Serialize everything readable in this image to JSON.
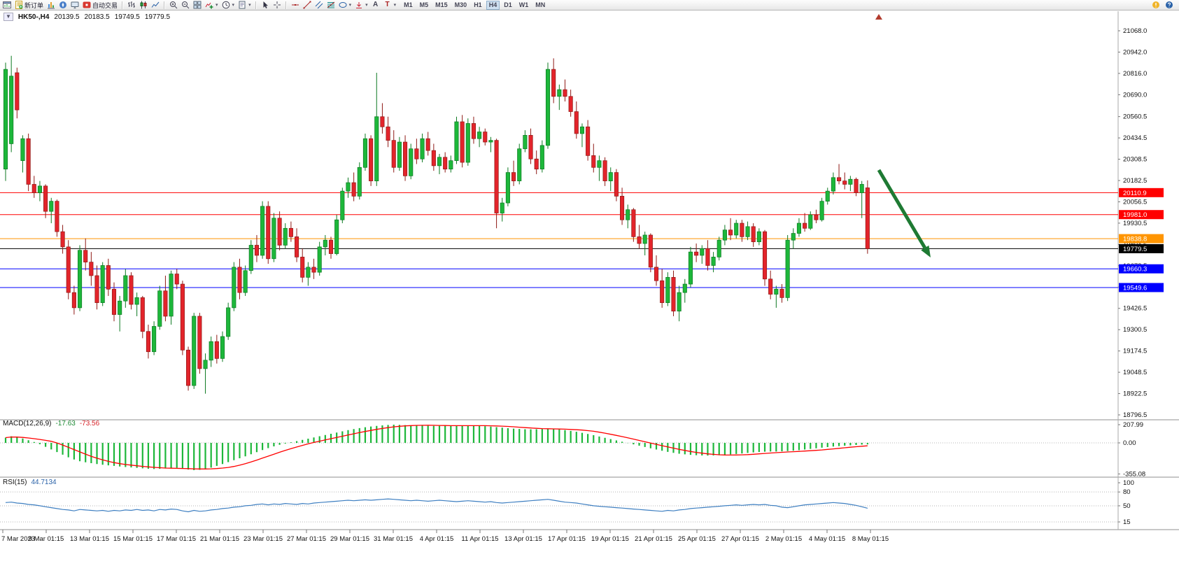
{
  "toolbar": {
    "new_order": "新订单",
    "autotrading": "自动交易",
    "timeframes": [
      "M1",
      "M5",
      "M15",
      "M30",
      "H1",
      "H4",
      "D1",
      "W1",
      "MN"
    ],
    "active_timeframe": "H4"
  },
  "chart_header": {
    "symbol_period": "HK50-,H4",
    "open": "20139.5",
    "high": "20183.5",
    "low": "19749.5",
    "close": "19779.5"
  },
  "indicators": {
    "macd": {
      "label": "MACD(12,26,9)",
      "value_main": "-17.63",
      "value_signal": "-73.56"
    },
    "rsi": {
      "label": "RSI(15)",
      "value": "44.7134"
    }
  },
  "chart_data": {
    "type": "candlestick",
    "symbol": "HK50-",
    "timeframe": "H4",
    "up_color": "#1db73a",
    "up_border": "#0d7a22",
    "down_color": "#e3242b",
    "down_border": "#8f1a16",
    "price_axis": {
      "labels": [
        "21068.0",
        "20942.0",
        "20816.0",
        "20690.0",
        "20560.5",
        "20434.5",
        "20308.5",
        "20182.5",
        "20056.5",
        "19930.5",
        "19804.5",
        "19678.5",
        "19552.5",
        "19426.5",
        "19300.5",
        "19174.5",
        "19048.5",
        "18922.5",
        "18796.5"
      ]
    },
    "hlines": [
      {
        "price": 20110.9,
        "color": "#ff0000",
        "label": "20110.9"
      },
      {
        "price": 19981.0,
        "color": "#ff0000",
        "label": "19981.0"
      },
      {
        "price": 19838.8,
        "color": "#ff9500",
        "label": "19838.8"
      },
      {
        "price": 19779.5,
        "color": "#000000",
        "label": "19779.5"
      },
      {
        "price": 19660.3,
        "color": "#0000ff",
        "label": "19660.3"
      },
      {
        "price": 19549.6,
        "color": "#0000ff",
        "label": "19549.6"
      }
    ],
    "candles": [
      [
        20250,
        20880,
        20180,
        20840
      ],
      [
        20400,
        20920,
        20350,
        20800
      ],
      [
        20820,
        20850,
        20550,
        20600
      ],
      [
        20300,
        20450,
        20230,
        20430
      ],
      [
        20430,
        20460,
        20120,
        20160
      ],
      [
        20160,
        20210,
        20080,
        20110
      ],
      [
        20110,
        20180,
        20060,
        20150
      ],
      [
        20150,
        20160,
        19960,
        20000
      ],
      [
        20000,
        20080,
        19930,
        20060
      ],
      [
        20060,
        20070,
        19850,
        19880
      ],
      [
        19880,
        19920,
        19750,
        19790
      ],
      [
        19790,
        19830,
        19480,
        19520
      ],
      [
        19520,
        19560,
        19390,
        19430
      ],
      [
        19430,
        19800,
        19410,
        19770
      ],
      [
        19770,
        19840,
        19650,
        19700
      ],
      [
        19700,
        19760,
        19560,
        19620
      ],
      [
        19620,
        19680,
        19420,
        19460
      ],
      [
        19460,
        19700,
        19440,
        19680
      ],
      [
        19680,
        19720,
        19500,
        19540
      ],
      [
        19540,
        19580,
        19350,
        19390
      ],
      [
        19390,
        19500,
        19290,
        19470
      ],
      [
        19470,
        19660,
        19430,
        19620
      ],
      [
        19620,
        19640,
        19420,
        19450
      ],
      [
        19450,
        19520,
        19380,
        19490
      ],
      [
        19490,
        19500,
        19250,
        19290
      ],
      [
        19290,
        19330,
        19130,
        19170
      ],
      [
        19170,
        19350,
        19150,
        19320
      ],
      [
        19320,
        19560,
        19300,
        19530
      ],
      [
        19530,
        19620,
        19350,
        19380
      ],
      [
        19380,
        19650,
        19330,
        19630
      ],
      [
        19630,
        19660,
        19540,
        19570
      ],
      [
        19570,
        19590,
        19150,
        19180
      ],
      [
        19180,
        19200,
        18940,
        18970
      ],
      [
        18970,
        19400,
        18950,
        19380
      ],
      [
        19380,
        19400,
        19040,
        19070
      ],
      [
        19070,
        19160,
        18922,
        19120
      ],
      [
        19120,
        19260,
        19080,
        19230
      ],
      [
        19230,
        19270,
        19100,
        19130
      ],
      [
        19130,
        19290,
        19110,
        19260
      ],
      [
        19260,
        19460,
        19240,
        19430
      ],
      [
        19430,
        19700,
        19410,
        19670
      ],
      [
        19670,
        19720,
        19480,
        19520
      ],
      [
        19520,
        19680,
        19500,
        19650
      ],
      [
        19650,
        19830,
        19630,
        19800
      ],
      [
        19800,
        19860,
        19700,
        19740
      ],
      [
        19740,
        20060,
        19720,
        20030
      ],
      [
        20030,
        20060,
        19690,
        19720
      ],
      [
        19720,
        19990,
        19700,
        19960
      ],
      [
        19960,
        20000,
        19770,
        19800
      ],
      [
        19800,
        19930,
        19780,
        19900
      ],
      [
        19900,
        19940,
        19820,
        19850
      ],
      [
        19850,
        19900,
        19700,
        19730
      ],
      [
        19730,
        19780,
        19580,
        19610
      ],
      [
        19610,
        19700,
        19560,
        19670
      ],
      [
        19670,
        19720,
        19600,
        19640
      ],
      [
        19640,
        19820,
        19620,
        19790
      ],
      [
        19790,
        19860,
        19740,
        19830
      ],
      [
        19830,
        19850,
        19720,
        19750
      ],
      [
        19750,
        19980,
        19740,
        19950
      ],
      [
        19950,
        20140,
        19930,
        20120
      ],
      [
        20120,
        20200,
        20080,
        20170
      ],
      [
        20170,
        20230,
        20060,
        20090
      ],
      [
        20090,
        20290,
        20070,
        20260
      ],
      [
        20260,
        20460,
        20240,
        20430
      ],
      [
        20430,
        20450,
        20150,
        20180
      ],
      [
        20180,
        20820,
        20150,
        20560
      ],
      [
        20560,
        20640,
        20460,
        20500
      ],
      [
        20500,
        20560,
        20380,
        20420
      ],
      [
        20420,
        20480,
        20230,
        20260
      ],
      [
        20260,
        20440,
        20240,
        20410
      ],
      [
        20410,
        20450,
        20180,
        20210
      ],
      [
        20210,
        20400,
        20190,
        20370
      ],
      [
        20370,
        20430,
        20280,
        20310
      ],
      [
        20310,
        20460,
        20290,
        20430
      ],
      [
        20430,
        20470,
        20330,
        20360
      ],
      [
        20360,
        20400,
        20240,
        20270
      ],
      [
        20270,
        20340,
        20220,
        20320
      ],
      [
        20320,
        20350,
        20230,
        20250
      ],
      [
        20250,
        20330,
        20230,
        20300
      ],
      [
        20300,
        20560,
        20280,
        20530
      ],
      [
        20530,
        20570,
        20260,
        20290
      ],
      [
        20290,
        20550,
        20270,
        20520
      ],
      [
        20520,
        20560,
        20400,
        20430
      ],
      [
        20430,
        20500,
        20380,
        20470
      ],
      [
        20470,
        20490,
        20390,
        20410
      ],
      [
        20410,
        20440,
        20350,
        20420
      ],
      [
        20420,
        20430,
        19900,
        19990
      ],
      [
        19990,
        20080,
        19940,
        20050
      ],
      [
        20050,
        20260,
        20030,
        20230
      ],
      [
        20230,
        20300,
        20150,
        20180
      ],
      [
        20180,
        20400,
        20160,
        20370
      ],
      [
        20370,
        20480,
        20350,
        20450
      ],
      [
        20450,
        20490,
        20280,
        20310
      ],
      [
        20310,
        20360,
        20220,
        20250
      ],
      [
        20250,
        20420,
        20230,
        20390
      ],
      [
        20390,
        20880,
        20370,
        20840
      ],
      [
        20840,
        20905,
        20640,
        20680
      ],
      [
        20680,
        20750,
        20600,
        20720
      ],
      [
        20720,
        20780,
        20650,
        20680
      ],
      [
        20680,
        20720,
        20560,
        20590
      ],
      [
        20590,
        20650,
        20430,
        20460
      ],
      [
        20460,
        20520,
        20380,
        20500
      ],
      [
        20500,
        20540,
        20300,
        20330
      ],
      [
        20330,
        20400,
        20230,
        20260
      ],
      [
        20260,
        20330,
        20180,
        20300
      ],
      [
        20300,
        20320,
        20150,
        20180
      ],
      [
        20180,
        20260,
        20120,
        20230
      ],
      [
        20230,
        20250,
        20060,
        20090
      ],
      [
        20090,
        20140,
        19920,
        19950
      ],
      [
        19950,
        20040,
        19900,
        20010
      ],
      [
        20010,
        20020,
        19820,
        19850
      ],
      [
        19850,
        19920,
        19780,
        19810
      ],
      [
        19810,
        19880,
        19740,
        19860
      ],
      [
        19860,
        19870,
        19640,
        19670
      ],
      [
        19670,
        19740,
        19560,
        19590
      ],
      [
        19590,
        19660,
        19430,
        19460
      ],
      [
        19460,
        19640,
        19440,
        19610
      ],
      [
        19610,
        19650,
        19380,
        19410
      ],
      [
        19410,
        19560,
        19350,
        19520
      ],
      [
        19520,
        19600,
        19460,
        19570
      ],
      [
        19570,
        19790,
        19550,
        19760
      ],
      [
        19760,
        19810,
        19700,
        19740
      ],
      [
        19740,
        19800,
        19690,
        19780
      ],
      [
        19780,
        19830,
        19650,
        19680
      ],
      [
        19680,
        19760,
        19640,
        19730
      ],
      [
        19730,
        19850,
        19710,
        19830
      ],
      [
        19830,
        19920,
        19800,
        19890
      ],
      [
        19890,
        19960,
        19830,
        19860
      ],
      [
        19860,
        19950,
        19840,
        19930
      ],
      [
        19930,
        19950,
        19820,
        19850
      ],
      [
        19850,
        19940,
        19830,
        19910
      ],
      [
        19910,
        19930,
        19790,
        19820
      ],
      [
        19820,
        19900,
        19800,
        19880
      ],
      [
        19880,
        19890,
        19560,
        19600
      ],
      [
        19600,
        19650,
        19480,
        19510
      ],
      [
        19510,
        19560,
        19430,
        19540
      ],
      [
        19540,
        19570,
        19460,
        19490
      ],
      [
        19490,
        19860,
        19470,
        19830
      ],
      [
        19830,
        19900,
        19780,
        19870
      ],
      [
        19870,
        19960,
        19850,
        19930
      ],
      [
        19930,
        19990,
        19880,
        19900
      ],
      [
        19900,
        20000,
        19890,
        19980
      ],
      [
        19980,
        20010,
        19930,
        19950
      ],
      [
        19950,
        20080,
        19940,
        20060
      ],
      [
        20060,
        20140,
        20040,
        20120
      ],
      [
        20120,
        20230,
        20100,
        20200
      ],
      [
        20200,
        20280,
        20160,
        20180
      ],
      [
        20180,
        20230,
        20130,
        20160
      ],
      [
        20160,
        20210,
        20120,
        20190
      ],
      [
        20190,
        20200,
        20090,
        20110
      ],
      [
        20110,
        20180,
        19960,
        20160
      ],
      [
        20139.5,
        20183.5,
        19749.5,
        19779.5
      ]
    ],
    "macd": {
      "hist_color": "#1db73a",
      "signal_color": "#ff0000",
      "scale_labels": [
        "207.99",
        "0.00",
        "-355.08"
      ],
      "histogram": [
        60,
        75,
        65,
        50,
        30,
        10,
        -15,
        -45,
        -75,
        -105,
        -135,
        -165,
        -190,
        -210,
        -222,
        -232,
        -242,
        -250,
        -257,
        -263,
        -270,
        -276,
        -281,
        -286,
        -291,
        -296,
        -299,
        -297,
        -293,
        -289,
        -286,
        -295,
        -305,
        -312,
        -308,
        -298,
        -283,
        -263,
        -242,
        -220,
        -198,
        -176,
        -154,
        -130,
        -106,
        -82,
        -60,
        -40,
        -22,
        -8,
        6,
        20,
        34,
        48,
        62,
        76,
        90,
        104,
        118,
        132,
        146,
        158,
        169,
        179,
        187,
        194,
        200,
        205,
        208,
        206,
        203,
        200,
        198,
        196,
        195,
        194,
        195,
        196,
        197,
        198,
        199,
        200,
        198,
        195,
        191,
        186,
        180,
        174,
        168,
        163,
        159,
        156,
        155,
        156,
        159,
        163,
        160,
        154,
        146,
        137,
        127,
        115,
        102,
        88,
        73,
        58,
        43,
        28,
        13,
        -2,
        -17,
        -32,
        -47,
        -62,
        -76,
        -90,
        -103,
        -114,
        -124,
        -131,
        -137,
        -141,
        -144,
        -145,
        -144,
        -141,
        -137,
        -132,
        -127,
        -121,
        -115,
        -109,
        -104,
        -101,
        -99,
        -99,
        -97,
        -94,
        -89,
        -83,
        -76,
        -69,
        -62,
        -55,
        -48,
        -42,
        -37,
        -32,
        -28,
        -24,
        -20,
        -17.63
      ]
    },
    "rsi": {
      "line_color": "#3e7fc1",
      "levels": [
        80,
        50,
        15
      ],
      "scale_labels": [
        "100",
        "80",
        "50",
        "15"
      ],
      "values": [
        57,
        58,
        56,
        55,
        53,
        52,
        50,
        48,
        46,
        44,
        42,
        41,
        39,
        42,
        41,
        40,
        39,
        40,
        38,
        40,
        39,
        41,
        40,
        42,
        40,
        41,
        39,
        42,
        41,
        43,
        42,
        39,
        37,
        40,
        38,
        39,
        41,
        42,
        44,
        45,
        47,
        48,
        50,
        51,
        53,
        54,
        52,
        54,
        53,
        55,
        54,
        53,
        55,
        54,
        56,
        57,
        58,
        59,
        60,
        61,
        62,
        61,
        62,
        63,
        62,
        63,
        64,
        65,
        64,
        63,
        62,
        61,
        62,
        61,
        60,
        61,
        62,
        61,
        60,
        59,
        60,
        61,
        60,
        59,
        58,
        59,
        57,
        56,
        57,
        58,
        59,
        60,
        61,
        62,
        63,
        64,
        62,
        60,
        58,
        57,
        56,
        54,
        52,
        50,
        49,
        48,
        47,
        46,
        45,
        44,
        43,
        42,
        41,
        40,
        39,
        38,
        40,
        39,
        41,
        42,
        44,
        45,
        46,
        47,
        48,
        49,
        50,
        51,
        52,
        51,
        52,
        53,
        52,
        53,
        51,
        50,
        47,
        46,
        48,
        50,
        52,
        53,
        54,
        55,
        56,
        57,
        56,
        55,
        53,
        51,
        48,
        44.7
      ]
    },
    "time_axis": [
      "7 Mar 2023",
      "9 Mar 01:15",
      "13 Mar 01:15",
      "15 Mar 01:15",
      "17 Mar 01:15",
      "21 Mar 01:15",
      "23 Mar 01:15",
      "27 Mar 01:15",
      "29 Mar 01:15",
      "31 Mar 01:15",
      "4 Apr 01:15",
      "11 Apr 01:15",
      "13 Apr 01:15",
      "17 Apr 01:15",
      "19 Apr 01:15",
      "21 Apr 01:15",
      "25 Apr 01:15",
      "27 Apr 01:15",
      "2 May 01:15",
      "4 May 01:15",
      "8 May 01:15"
    ],
    "annotation_arrow": {
      "from": [
        1256,
        227
      ],
      "to": [
        1330,
        352
      ],
      "color": "#1e7a33"
    }
  }
}
